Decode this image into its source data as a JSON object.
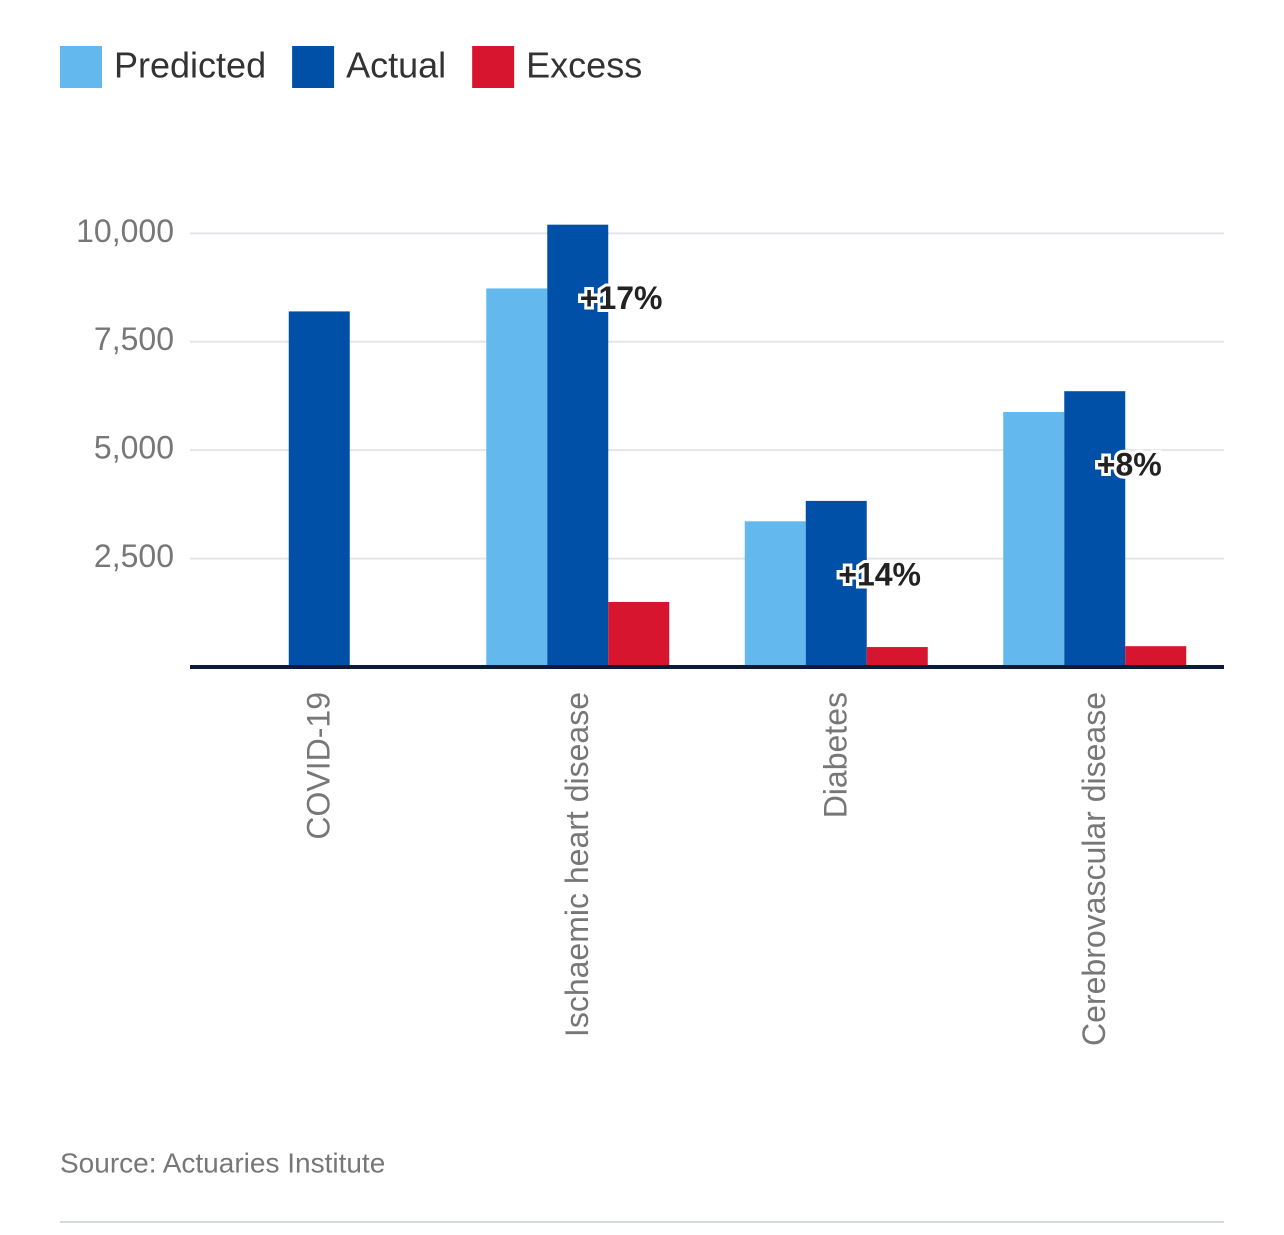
{
  "chart_data": {
    "type": "bar",
    "categories": [
      "COVID-19",
      "Ischaemic heart disease",
      "Diabetes",
      "Cerebrovascular disease"
    ],
    "series": [
      {
        "name": "Predicted",
        "color": "#63b8ee",
        "values": [
          null,
          8730,
          3360,
          5880
        ]
      },
      {
        "name": "Actual",
        "color": "#0050a8",
        "values": [
          8200,
          10200,
          3830,
          6360
        ]
      },
      {
        "name": "Excess",
        "color": "#d7152f",
        "values": [
          null,
          1500,
          460,
          480
        ]
      }
    ],
    "excess_labels": [
      null,
      "+17%",
      "+14%",
      "+8%"
    ],
    "ylim": [
      0,
      10400
    ],
    "yticks": [
      {
        "value": 2500,
        "label": "2,500"
      },
      {
        "value": 5000,
        "label": "5,000"
      },
      {
        "value": 7500,
        "label": "7,500"
      },
      {
        "value": 10000,
        "label": "10,000"
      }
    ],
    "grid": true,
    "source": "Source: Actuaries Institute"
  }
}
